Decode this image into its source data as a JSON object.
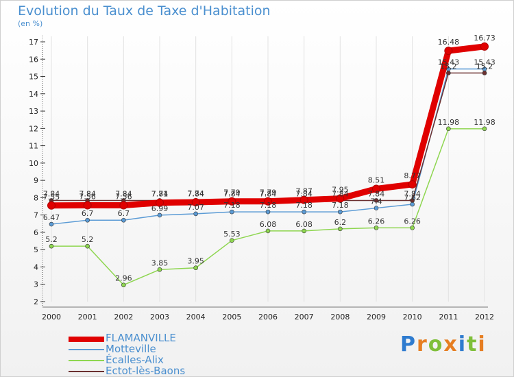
{
  "title": "Evolution du Taux de Taxe d'Habitation",
  "units": "(en %)",
  "brand": "Proxiti",
  "chart_data": {
    "type": "line",
    "title": "Evolution du Taux de Taxe d'Habitation",
    "ylabel": "(en %)",
    "xlabel": "",
    "x": [
      "2000",
      "2001",
      "2002",
      "2003",
      "2004",
      "2005",
      "2006",
      "2007",
      "2008",
      "2009",
      "2010",
      "2011",
      "2012"
    ],
    "ylim": [
      2,
      17
    ],
    "yticks": [
      2,
      3,
      4,
      5,
      6,
      7,
      8,
      9,
      10,
      11,
      12,
      13,
      14,
      15,
      16,
      17
    ],
    "series": [
      {
        "name": "FLAMANVILLE",
        "color": "#e00000",
        "values": [
          7.55,
          7.56,
          7.56,
          7.71,
          7.74,
          7.79,
          7.79,
          7.87,
          7.95,
          8.51,
          8.77,
          16.48,
          16.73
        ]
      },
      {
        "name": "Motteville",
        "color": "#5b9bd5",
        "values": [
          6.47,
          6.7,
          6.7,
          6.99,
          7.07,
          7.18,
          7.18,
          7.18,
          7.18,
          7.4,
          7.62,
          15.43,
          15.43
        ]
      },
      {
        "name": "Écalles-Alix",
        "color": "#8ed650",
        "values": [
          5.2,
          5.2,
          2.96,
          3.85,
          3.95,
          5.53,
          6.08,
          6.08,
          6.2,
          6.26,
          6.26,
          11.98,
          11.98
        ]
      },
      {
        "name": "Ectot-lès-Baons",
        "color": "#6b3030",
        "values": [
          7.84,
          7.84,
          7.84,
          7.84,
          7.84,
          7.84,
          7.84,
          7.84,
          7.84,
          7.84,
          7.84,
          15.2,
          15.2
        ]
      }
    ],
    "point_labels": [
      [
        "7.55",
        "7.56",
        "7.56",
        "7.71",
        "7.74",
        "7.79",
        "7.79",
        "7.87",
        "7.95",
        "8.51",
        "8.77",
        "16.48",
        "16.73"
      ],
      [
        "6.47",
        "6.7",
        "6.7",
        "6.99",
        "7.07",
        "7.18",
        "7.18",
        "7.18",
        "7.18",
        "7.4",
        "7.62",
        "15.43",
        "15.43"
      ],
      [
        "5.2",
        "5.2",
        "2.96",
        "3.85",
        "3.95",
        "5.53",
        "6.08",
        "6.08",
        "6.2",
        "6.26",
        "6.26",
        "11.98",
        "11.98"
      ],
      [
        "7.84",
        "7.84",
        "7.84",
        "7.84",
        "7.84",
        "7.84",
        "7.84",
        "7.84",
        "7.84",
        "7.84",
        "7.84",
        "15.2",
        "15.2"
      ]
    ],
    "legend": "bottom-left"
  }
}
